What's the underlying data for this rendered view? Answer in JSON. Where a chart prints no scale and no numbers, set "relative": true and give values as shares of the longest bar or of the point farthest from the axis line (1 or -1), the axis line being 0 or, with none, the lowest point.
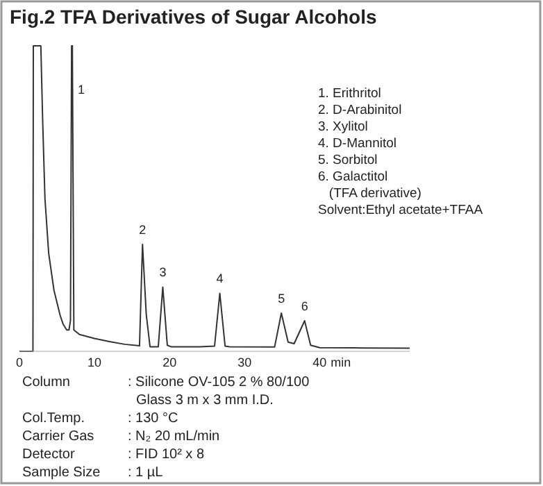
{
  "chart_data": {
    "type": "line",
    "title": "Fig.2  TFA Derivatives of Sugar Alcohols",
    "relative": true,
    "xlim": [
      0,
      52
    ],
    "xticks": [
      0,
      10,
      20,
      30,
      40
    ],
    "xlabel": "min",
    "tick_labels": "x",
    "grid": false,
    "series": [
      {
        "color": "#333333",
        "x": [
          0,
          1.8,
          1.85,
          2.85,
          3.1,
          3.4,
          3.9,
          4.6,
          5.4,
          5.8,
          6.3,
          6.6,
          6.8,
          6.95,
          7.05,
          7.25,
          8,
          10,
          12,
          14,
          16,
          16.4,
          16.9,
          17.4,
          18.5,
          19.1,
          19.7,
          20.2,
          24,
          26,
          26.7,
          27.4,
          28,
          34,
          34.9,
          35.8,
          36.6,
          38,
          38.8,
          40,
          46,
          52
        ],
        "values": [
          0,
          0,
          1,
          1,
          0.75,
          0.5,
          0.32,
          0.2,
          0.12,
          0.09,
          0.07,
          0.07,
          0.1,
          1,
          1,
          0.07,
          0.055,
          0.042,
          0.032,
          0.023,
          0.018,
          0.35,
          0.12,
          0.015,
          0.015,
          0.21,
          0.02,
          0.015,
          0.015,
          0.017,
          0.19,
          0.017,
          0.015,
          0.014,
          0.125,
          0.03,
          0.025,
          0.1,
          0.02,
          0.012,
          0.011,
          0.01
        ]
      }
    ],
    "annotations": [
      {
        "text": "1",
        "x": 6.95,
        "y": 1
      },
      {
        "text": "2",
        "x": 16.4,
        "y": 0.35
      },
      {
        "text": "3",
        "x": 19.1,
        "y": 0.21
      },
      {
        "text": "4",
        "x": 26.7,
        "y": 0.19
      },
      {
        "text": "5",
        "x": 34.9,
        "y": 0.125
      },
      {
        "text": "6",
        "x": 38,
        "y": 0.1
      },
      "1. Erithritol\n2. D-Arabinitol\n3. Xylitol\n4. D-Mannitol\n5. Sorbitol\n6. Galactitol\n   (TFA derivative)\nSolvent:Ethyl acetate+TFAA",
      "Column : Silicone OV-105 2 % 80/100\nGlass 3 m x 3 mm I.D.\nCol.Temp. : 130 °C\nCarrier Gas : N₂ 20 mL/min\nDetector : FID 10² x 8\nSample Size : 1 µL"
    ]
  }
}
